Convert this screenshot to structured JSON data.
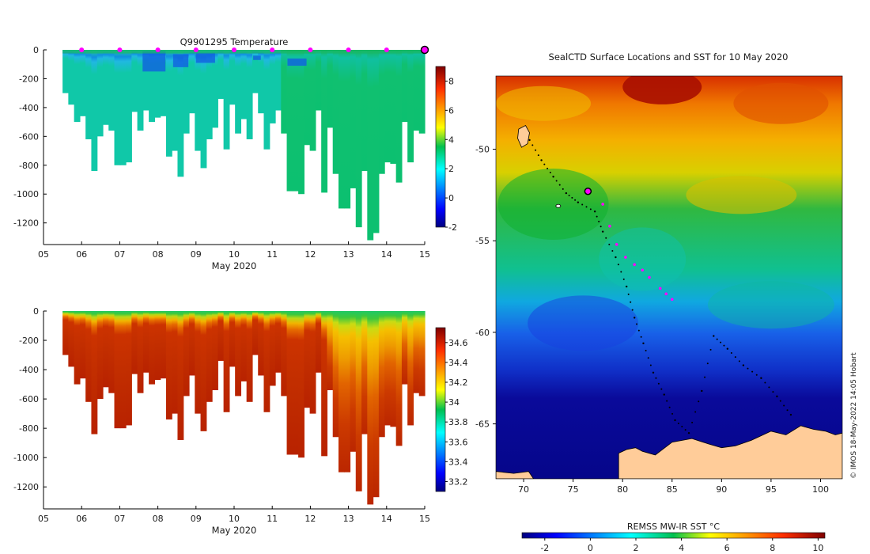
{
  "chart_data": [
    {
      "type": "heatmap",
      "title": "Q9901295  Temperature",
      "xlabel": "May 2020",
      "ylabel": "",
      "x_ticks": [
        "05",
        "06",
        "07",
        "08",
        "09",
        "10",
        "11",
        "12",
        "13",
        "14",
        "15"
      ],
      "xlim": [
        5,
        15
      ],
      "y_ticks": [
        0,
        -200,
        -400,
        -600,
        -800,
        -1000,
        -1200
      ],
      "ylim": [
        -1350,
        0
      ],
      "colorbar_ticks": [
        8,
        6,
        4,
        2,
        0,
        -2
      ],
      "colorbar_range": [
        -2,
        9
      ],
      "surface_markers": [
        6,
        7,
        8,
        9,
        10,
        11,
        12,
        13,
        14
      ],
      "latest_marker": 15,
      "profile_bottom_depths": [
        300,
        380,
        500,
        460,
        620,
        840,
        600,
        520,
        560,
        800,
        800,
        780,
        430,
        560,
        420,
        500,
        470,
        460,
        740,
        700,
        880,
        580,
        440,
        700,
        820,
        620,
        540,
        340,
        690,
        380,
        580,
        480,
        620,
        300,
        440,
        690,
        510,
        420,
        580,
        980,
        980,
        1000,
        660,
        700,
        420,
        990,
        540,
        860,
        1100,
        1100,
        960,
        1230,
        840,
        1320,
        1270,
        860,
        780,
        790,
        920,
        500,
        780,
        560,
        580
      ],
      "colormap": "jet"
    },
    {
      "type": "heatmap",
      "title": "",
      "xlabel": "May 2020",
      "ylabel": "",
      "x_ticks": [
        "05",
        "06",
        "07",
        "08",
        "09",
        "10",
        "11",
        "12",
        "13",
        "14",
        "15"
      ],
      "xlim": [
        5,
        15
      ],
      "y_ticks": [
        0,
        -200,
        -400,
        -600,
        -800,
        -1000,
        -1200
      ],
      "ylim": [
        -1350,
        0
      ],
      "colorbar_ticks": [
        34.6,
        34.4,
        34.2,
        34,
        33.8,
        33.6,
        33.4,
        33.2
      ],
      "colorbar_range": [
        33.1,
        34.75
      ],
      "colormap": "jet"
    },
    {
      "type": "heatmap",
      "title": "SealCTD Surface Locations and SST for 10 May 2020",
      "x_ticks": [
        70,
        75,
        80,
        85,
        90,
        95,
        100
      ],
      "xlim": [
        67.2,
        102.2
      ],
      "y_ticks": [
        -50,
        -55,
        -60,
        -65
      ],
      "ylim": [
        -68,
        -46
      ],
      "colorbar_label": "REMSS MW-IR SST °C",
      "colorbar_ticks": [
        -2,
        0,
        2,
        4,
        6,
        8,
        10
      ],
      "colorbar_range": [
        -3,
        10.3
      ],
      "current_location": [
        76.5,
        -52.3
      ],
      "track_magenta": [
        [
          78,
          -53.0
        ],
        [
          78.7,
          -54.2
        ],
        [
          79.4,
          -55.2
        ],
        [
          80.3,
          -55.9
        ],
        [
          81.2,
          -56.3
        ],
        [
          82,
          -56.6
        ],
        [
          82.7,
          -57.0
        ],
        [
          83.8,
          -57.6
        ],
        [
          84.4,
          -57.9
        ],
        [
          85,
          -58.2
        ]
      ],
      "track_black": [
        [
          70.6,
          -49.5
        ],
        [
          71.8,
          -50.6
        ],
        [
          73,
          -51.5
        ],
        [
          74.3,
          -52.4
        ],
        [
          75.5,
          -52.9
        ],
        [
          77.2,
          -53.4
        ],
        [
          78,
          -54.5
        ],
        [
          79.3,
          -55.9
        ],
        [
          80.4,
          -57.5
        ],
        [
          81.2,
          -59.2
        ],
        [
          82.1,
          -60.6
        ],
        [
          83.1,
          -62.2
        ],
        [
          84.2,
          -63.4
        ],
        [
          85.3,
          -64.8
        ],
        [
          86.7,
          -65.5
        ],
        [
          88,
          -63.2
        ],
        [
          89.2,
          -60.2
        ],
        [
          90.6,
          -60.9
        ],
        [
          92.2,
          -61.8
        ],
        [
          94,
          -62.5
        ],
        [
          95.6,
          -63.5
        ],
        [
          97,
          -64.5
        ]
      ],
      "colormap": "jet"
    }
  ],
  "credit": "© IMOS 18-May-2022 14:05 Hobart",
  "colors": {
    "marker": "#ff00ff",
    "land": "#ffcc99",
    "axis": "#000000"
  }
}
